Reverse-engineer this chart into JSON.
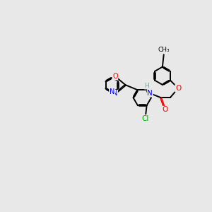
{
  "bg_color": "#e8e8e8",
  "bond_color": "#000000",
  "atom_colors": {
    "N": "#0000ff",
    "O": "#ff0000",
    "Cl": "#00aa00",
    "H": "#7a9a9a",
    "C": "#000000"
  },
  "bond_width": 1.4,
  "figsize": [
    3.0,
    3.0
  ],
  "dpi": 100
}
